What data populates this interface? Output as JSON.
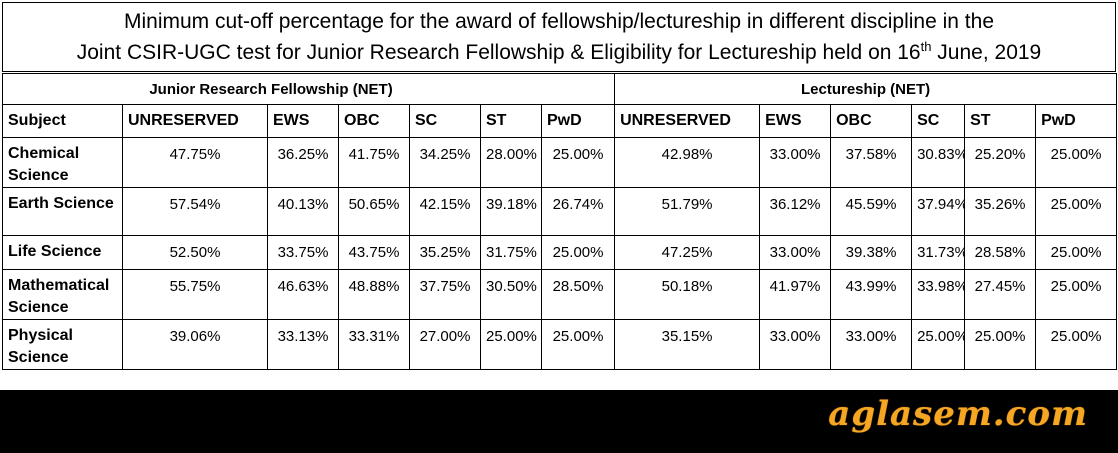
{
  "title": {
    "line1": "Minimum cut-off percentage for the award of fellowship/lectureship in different discipline in the",
    "line2_prefix": "Joint CSIR-UGC test for Junior Research Fellowship & Eligibility for Lectureship held on 16",
    "line2_sup": "th",
    "line2_suffix": " June, 2019"
  },
  "groups": {
    "jrf": "Junior Research Fellowship (NET)",
    "lectureship": "Lectureship (NET)"
  },
  "headers": [
    "Subject",
    "UNRESERVED",
    "EWS",
    "OBC",
    "SC",
    "ST",
    "PwD",
    "UNRESERVED",
    "EWS",
    "OBC",
    "SC",
    "ST",
    "PwD"
  ],
  "rows": [
    {
      "subject": "Chemical Science",
      "values": [
        "47.75%",
        "36.25%",
        "41.75%",
        "34.25%",
        "28.00%",
        "25.00%",
        "42.98%",
        "33.00%",
        "37.58%",
        "30.83%",
        "25.20%",
        "25.00%"
      ]
    },
    {
      "subject": "Earth Science",
      "values": [
        "57.54%",
        "40.13%",
        "50.65%",
        "42.15%",
        "39.18%",
        "26.74%",
        "51.79%",
        "36.12%",
        "45.59%",
        "37.94%",
        "35.26%",
        "25.00%"
      ]
    },
    {
      "subject": "Life Science",
      "values": [
        "52.50%",
        "33.75%",
        "43.75%",
        "35.25%",
        "31.75%",
        "25.00%",
        "47.25%",
        "33.00%",
        "39.38%",
        "31.73%",
        "28.58%",
        "25.00%"
      ]
    },
    {
      "subject": "Mathematical Science",
      "values": [
        "55.75%",
        "46.63%",
        "48.88%",
        "37.75%",
        "30.50%",
        "28.50%",
        "50.18%",
        "41.97%",
        "43.99%",
        "33.98%",
        "27.45%",
        "25.00%"
      ]
    },
    {
      "subject": "Physical Science",
      "values": [
        "39.06%",
        "33.13%",
        "33.31%",
        "27.00%",
        "25.00%",
        "25.00%",
        "35.15%",
        "33.00%",
        "33.00%",
        "25.00%",
        "25.00%",
        "25.00%"
      ]
    }
  ],
  "brand": {
    "text": "aglasem.com",
    "color": "#f5a623"
  }
}
